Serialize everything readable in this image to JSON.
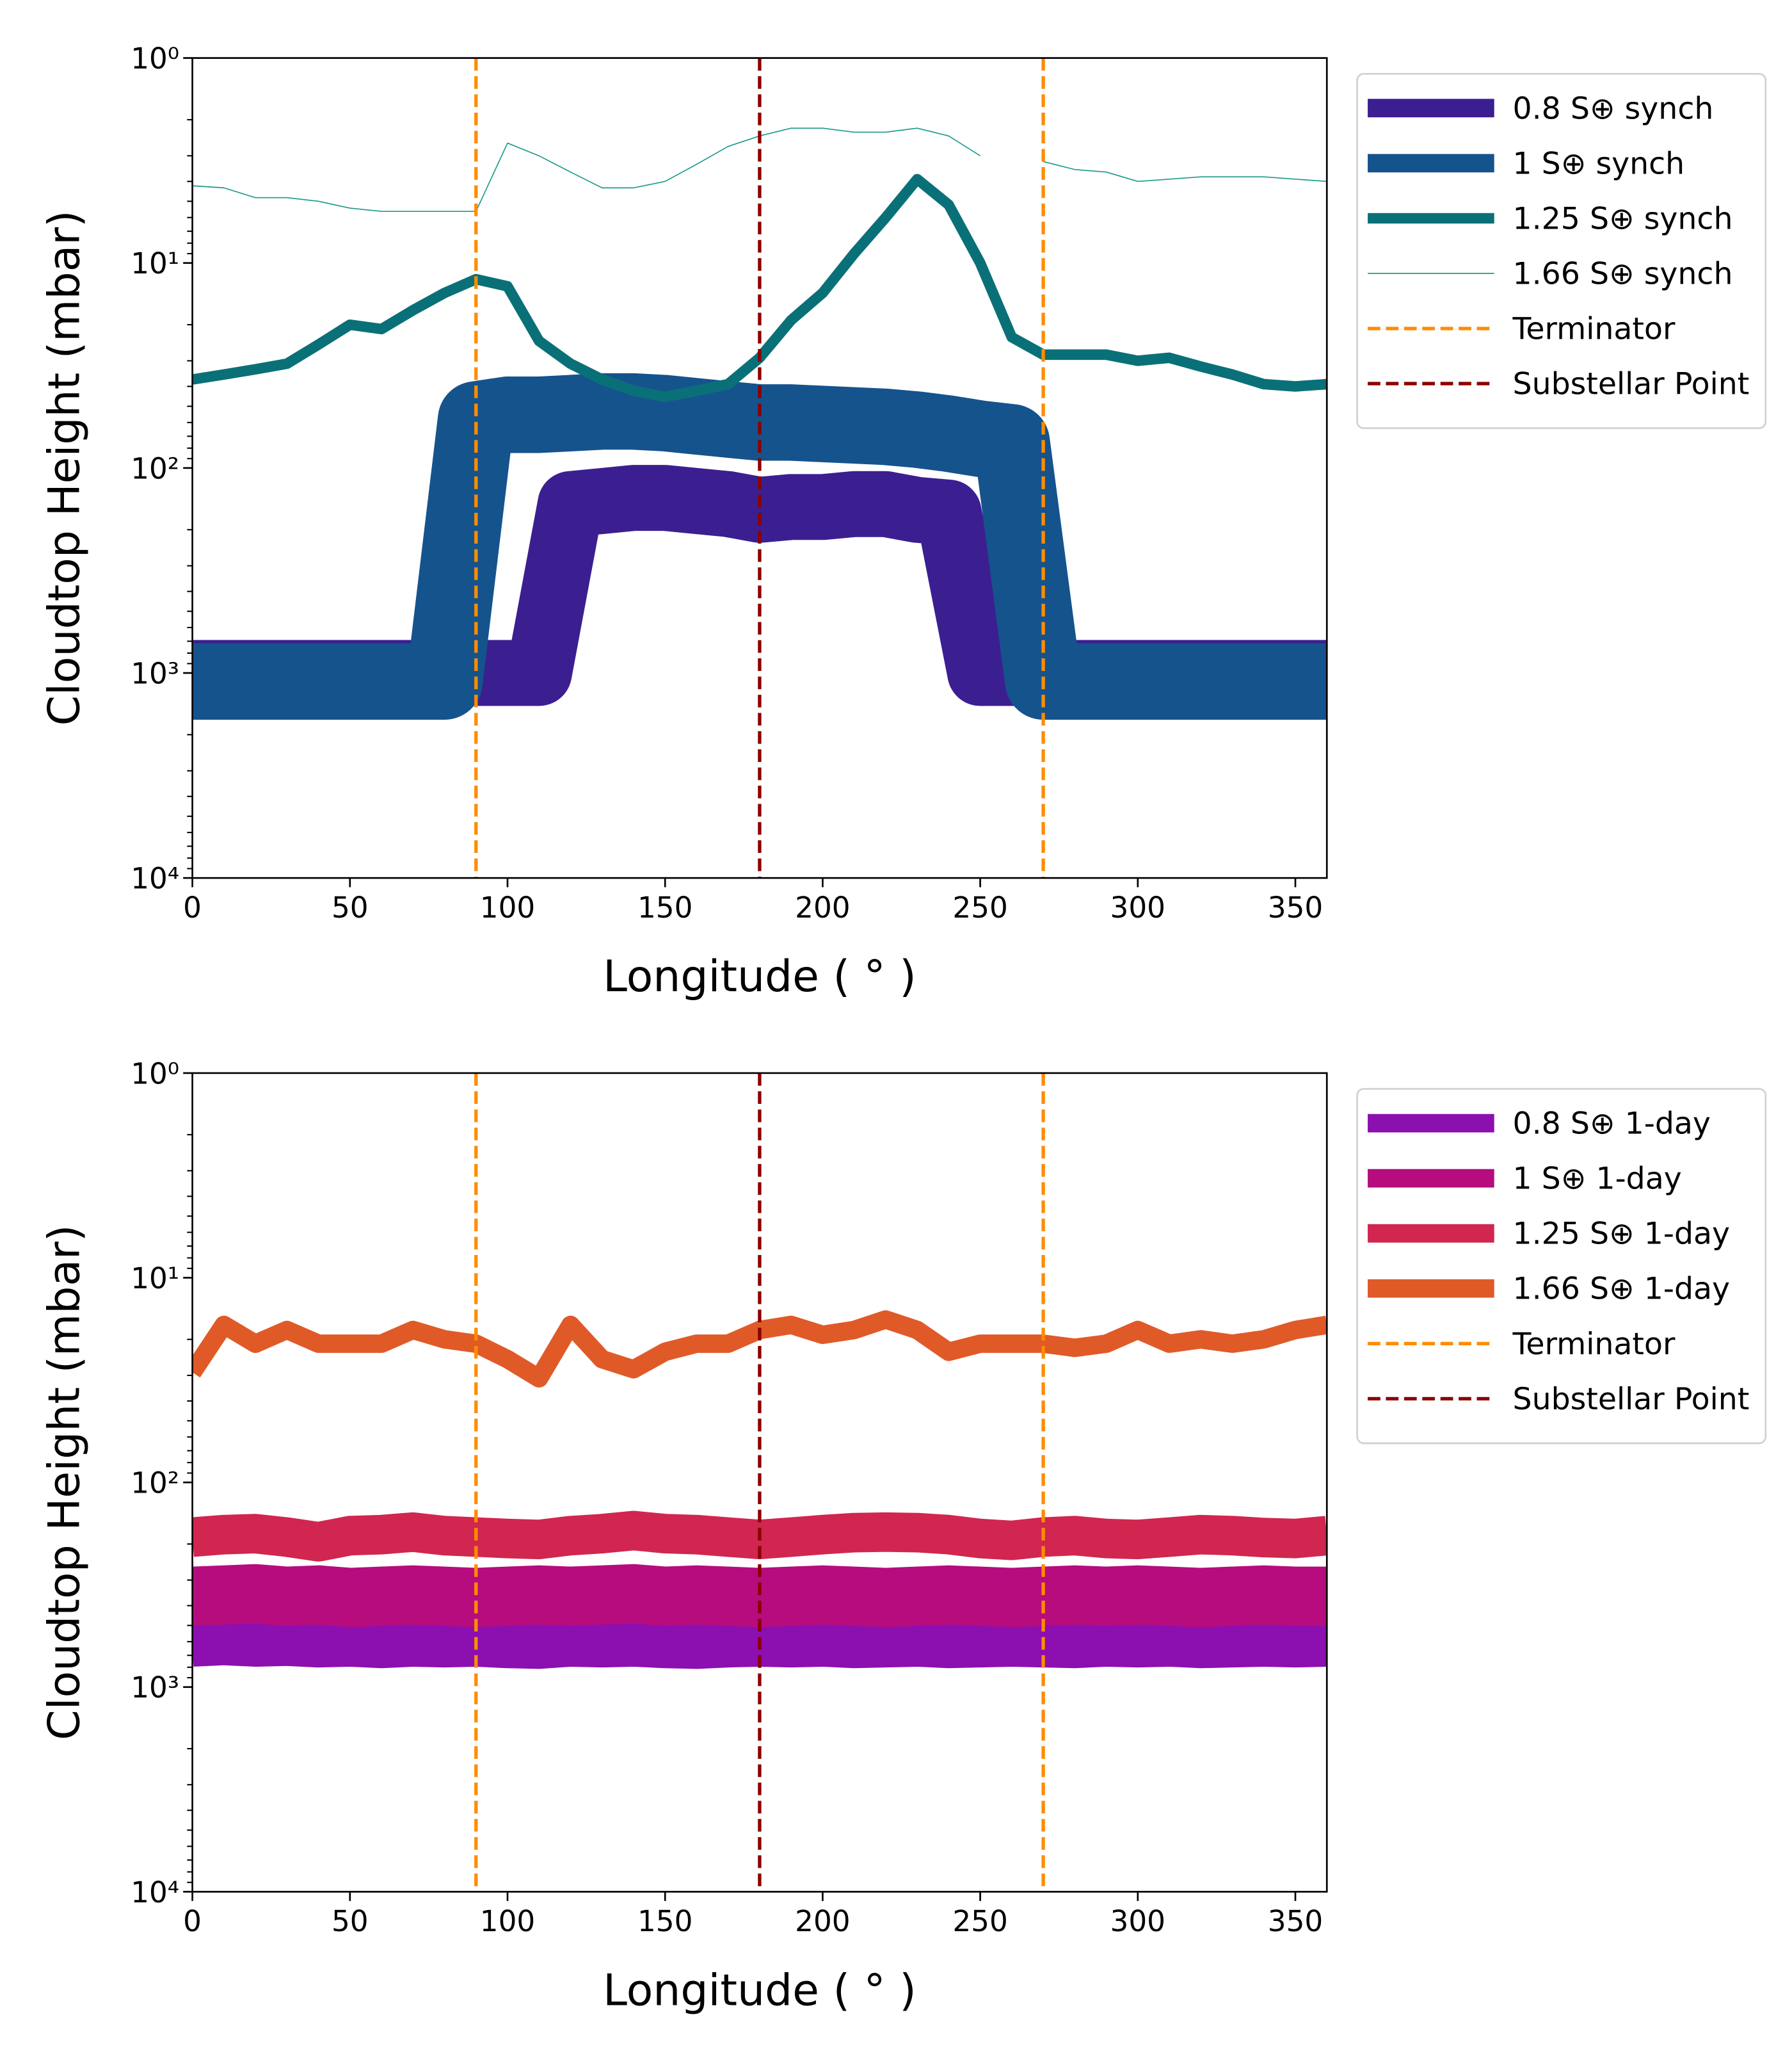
{
  "chart_data": [
    {
      "type": "line",
      "xlabel": "Longitude ( ° )",
      "ylabel": "Cloudtop Height (mbar)",
      "xlim": [
        0,
        360
      ],
      "xticks": [
        0,
        50,
        100,
        150,
        200,
        250,
        300,
        350
      ],
      "ylim": [
        1,
        10000
      ],
      "log": true,
      "inverted": true,
      "yticks": [
        {
          "value": 1,
          "label": "10⁰"
        },
        {
          "value": 10,
          "label": "10¹"
        },
        {
          "value": 100,
          "label": "10²"
        },
        {
          "value": 1000,
          "label": "10³"
        },
        {
          "value": 10000,
          "label": "10⁴"
        }
      ],
      "legend": "outside upper right",
      "x": [
        0,
        10,
        20,
        30,
        40,
        50,
        60,
        70,
        80,
        90,
        100,
        110,
        120,
        130,
        140,
        150,
        160,
        170,
        180,
        190,
        200,
        210,
        220,
        230,
        240,
        250,
        260,
        270,
        280,
        290,
        300,
        310,
        320,
        330,
        340,
        350,
        360
      ],
      "series": [
        {
          "name": "0.8 S⊕ synch",
          "color": "#3b1f91",
          "values": [
            1000,
            1000,
            1000,
            1000,
            1000,
            1000,
            1000,
            1000,
            1000,
            1000,
            1000,
            1000,
            150,
            145,
            140,
            140,
            145,
            150,
            160,
            155,
            155,
            150,
            150,
            160,
            165,
            1000,
            1000,
            1000,
            1000,
            1000,
            1000,
            1000,
            1000,
            1000,
            1000,
            1000,
            1000
          ]
        },
        {
          "name": "1 S⊕ synch",
          "color": "#15538d",
          "values": [
            1100,
            1100,
            1100,
            1100,
            1100,
            1100,
            1100,
            1100,
            1100,
            58,
            55,
            55,
            54,
            53,
            53,
            54,
            56,
            58,
            60,
            60,
            61,
            62,
            63,
            65,
            68,
            72,
            75,
            1100,
            1100,
            1100,
            1100,
            1100,
            1100,
            1100,
            1100,
            1100,
            1100
          ]
        },
        {
          "name": "1.25 S⊕ synch",
          "color": "#0a7078",
          "values": [
            37,
            35,
            33,
            31,
            25,
            20,
            21,
            17,
            14,
            12,
            13,
            24,
            31,
            37,
            42,
            45,
            42,
            39,
            29,
            19,
            14,
            9,
            6,
            3.9,
            5.2,
            10,
            23,
            28,
            28,
            28,
            30,
            29,
            32,
            35,
            39,
            40,
            39
          ]
        },
        {
          "name": "1.66 S⊕ synch",
          "color": "#1b9a8a",
          "values": [
            4.2,
            4.3,
            4.8,
            4.8,
            5.0,
            5.4,
            5.6,
            5.6,
            5.6,
            5.6,
            2.6,
            3.0,
            3.6,
            4.3,
            4.3,
            4.0,
            3.3,
            2.7,
            2.4,
            2.2,
            2.2,
            2.3,
            2.3,
            2.2,
            2.4,
            3.0,
            null,
            3.2,
            3.5,
            3.6,
            4.0,
            3.9,
            3.8,
            3.8,
            3.8,
            3.9,
            4.0
          ]
        }
      ],
      "vlines": [
        {
          "name": "Terminator",
          "color": "#ff8c00",
          "x": [
            90,
            270
          ]
        },
        {
          "name": "Substellar Point",
          "color": "#8b0000",
          "x": [
            180
          ]
        }
      ]
    },
    {
      "type": "line",
      "xlabel": "Longitude ( ° )",
      "ylabel": "Cloudtop Height (mbar)",
      "xlim": [
        0,
        360
      ],
      "xticks": [
        0,
        50,
        100,
        150,
        200,
        250,
        300,
        350
      ],
      "ylim": [
        1,
        10000
      ],
      "log": true,
      "inverted": true,
      "yticks": [
        {
          "value": 1,
          "label": "10⁰"
        },
        {
          "value": 10,
          "label": "10¹"
        },
        {
          "value": 100,
          "label": "10²"
        },
        {
          "value": 1000,
          "label": "10³"
        },
        {
          "value": 10000,
          "label": "10⁴"
        }
      ],
      "legend": "outside upper right",
      "x": [
        0,
        10,
        20,
        30,
        40,
        50,
        60,
        70,
        80,
        90,
        100,
        110,
        120,
        130,
        140,
        150,
        160,
        170,
        180,
        190,
        200,
        210,
        220,
        230,
        240,
        250,
        260,
        270,
        280,
        290,
        300,
        310,
        320,
        330,
        340,
        350,
        360
      ],
      "series": [
        {
          "name": "0.8 S⊕ 1-day",
          "color": "#8c0fb0",
          "values": [
            600,
            590,
            600,
            595,
            605,
            600,
            610,
            600,
            605,
            600,
            610,
            615,
            600,
            605,
            600,
            610,
            615,
            605,
            600,
            605,
            600,
            610,
            605,
            600,
            610,
            605,
            600,
            605,
            610,
            600,
            605,
            600,
            610,
            605,
            600,
            605,
            600
          ]
        },
        {
          "name": "1 S⊕ 1-day",
          "color": "#b60c7e",
          "values": [
            360,
            355,
            350,
            360,
            355,
            365,
            360,
            355,
            360,
            365,
            360,
            355,
            360,
            355,
            350,
            360,
            355,
            360,
            365,
            360,
            355,
            360,
            365,
            360,
            355,
            360,
            365,
            360,
            355,
            360,
            355,
            360,
            365,
            360,
            355,
            360,
            360
          ]
        },
        {
          "name": "1.25 S⊕ 1-day",
          "color": "#d1264f",
          "values": [
            185,
            180,
            178,
            185,
            195,
            182,
            180,
            175,
            182,
            185,
            188,
            190,
            182,
            178,
            172,
            178,
            180,
            185,
            190,
            185,
            180,
            176,
            175,
            176,
            180,
            188,
            192,
            185,
            182,
            188,
            190,
            185,
            180,
            182,
            186,
            188,
            182
          ]
        },
        {
          "name": "1.66 S⊕ 1-day",
          "color": "#e05a28",
          "values": [
            29,
            17,
            21,
            18,
            21,
            21,
            21,
            18,
            20,
            21,
            25,
            31,
            17,
            25,
            28,
            23,
            21,
            21,
            18,
            17,
            19,
            18,
            16,
            18,
            23,
            21,
            21,
            21,
            22,
            21,
            18,
            21,
            20,
            21,
            20,
            18,
            17
          ]
        }
      ],
      "vlines": [
        {
          "name": "Terminator",
          "color": "#ff8c00",
          "x": [
            90,
            270
          ]
        },
        {
          "name": "Substellar Point",
          "color": "#8b0000",
          "x": [
            180
          ]
        }
      ]
    }
  ]
}
